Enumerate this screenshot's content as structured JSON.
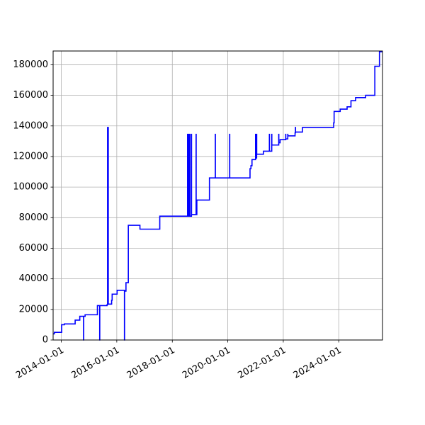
{
  "chart_data": {
    "type": "line",
    "title": "",
    "xlabel": "",
    "ylabel": "",
    "grid": true,
    "line_color": "#0000ff",
    "xlim": [
      "2013-09-15",
      "2025-07-30"
    ],
    "ylim": [
      0,
      189000
    ],
    "xticks": [
      "2014-01-01",
      "2016-01-01",
      "2018-01-01",
      "2020-01-01",
      "2022-01-01",
      "2024-01-01"
    ],
    "yticks": [
      0,
      20000,
      40000,
      60000,
      80000,
      100000,
      120000,
      140000,
      160000,
      180000
    ],
    "series": [
      {
        "name": "",
        "points": [
          [
            "2013-09-15",
            4000
          ],
          [
            "2013-10-01",
            5000
          ],
          [
            "2013-12-20",
            5000
          ],
          [
            "2014-01-05",
            10000
          ],
          [
            "2014-02-10",
            10500
          ],
          [
            "2014-07-01",
            10500
          ],
          [
            "2014-07-02",
            13000
          ],
          [
            "2014-08-30",
            13000
          ],
          [
            "2014-09-01",
            15500
          ],
          [
            "2014-10-20",
            15500
          ],
          [
            "2014-10-21",
            0
          ],
          [
            "2014-10-22",
            15500
          ],
          [
            "2014-11-10",
            16500
          ],
          [
            "2015-04-20",
            16500
          ],
          [
            "2015-04-21",
            22500
          ],
          [
            "2015-05-20",
            22500
          ],
          [
            "2015-05-21",
            0
          ],
          [
            "2015-05-22",
            22500
          ],
          [
            "2015-08-20",
            22500
          ],
          [
            "2015-08-25",
            23000
          ],
          [
            "2015-09-01",
            23500
          ],
          [
            "2015-09-02",
            139000
          ],
          [
            "2015-09-10",
            139000
          ],
          [
            "2015-09-11",
            23500
          ],
          [
            "2015-10-20",
            23500
          ],
          [
            "2015-10-25",
            26000
          ],
          [
            "2015-11-01",
            30000
          ],
          [
            "2015-12-25",
            30000
          ],
          [
            "2016-01-05",
            32500
          ],
          [
            "2016-04-10",
            32500
          ],
          [
            "2016-04-11",
            0
          ],
          [
            "2016-04-12",
            32000
          ],
          [
            "2016-04-25",
            32000
          ],
          [
            "2016-05-01",
            37500
          ],
          [
            "2016-05-20",
            37500
          ],
          [
            "2016-06-01",
            75000
          ],
          [
            "2016-10-20",
            75000
          ],
          [
            "2016-11-01",
            72500
          ],
          [
            "2017-07-15",
            72500
          ],
          [
            "2017-07-20",
            81000
          ],
          [
            "2018-07-20",
            81000
          ],
          [
            "2018-07-21",
            134500
          ],
          [
            "2018-07-22",
            81000
          ],
          [
            "2018-08-05",
            134500
          ],
          [
            "2018-08-06",
            81000
          ],
          [
            "2018-08-20",
            134500
          ],
          [
            "2018-08-21",
            81000
          ],
          [
            "2018-09-10",
            134500
          ],
          [
            "2018-09-11",
            82000
          ],
          [
            "2018-11-01",
            82000
          ],
          [
            "2018-11-10",
            134500
          ],
          [
            "2018-11-11",
            82000
          ],
          [
            "2018-11-20",
            91500
          ],
          [
            "2019-05-01",
            91500
          ],
          [
            "2019-05-05",
            106000
          ],
          [
            "2019-07-20",
            106000
          ],
          [
            "2019-07-21",
            134500
          ],
          [
            "2019-07-22",
            106000
          ],
          [
            "2020-01-25",
            106000
          ],
          [
            "2020-01-26",
            134500
          ],
          [
            "2020-01-27",
            106000
          ],
          [
            "2020-10-15",
            106000
          ],
          [
            "2020-10-20",
            112000
          ],
          [
            "2020-11-01",
            114000
          ],
          [
            "2020-11-15",
            118000
          ],
          [
            "2020-12-20",
            118000
          ],
          [
            "2021-01-01",
            134500
          ],
          [
            "2021-01-02",
            119000
          ],
          [
            "2021-01-15",
            134500
          ],
          [
            "2021-01-16",
            121500
          ],
          [
            "2021-04-10",
            121500
          ],
          [
            "2021-04-15",
            123500
          ],
          [
            "2021-07-01",
            123500
          ],
          [
            "2021-07-02",
            134500
          ],
          [
            "2021-07-03",
            123500
          ],
          [
            "2021-08-01",
            123500
          ],
          [
            "2021-08-02",
            134500
          ],
          [
            "2021-08-03",
            127500
          ],
          [
            "2021-11-01",
            127500
          ],
          [
            "2021-11-02",
            134500
          ],
          [
            "2021-11-03",
            129000
          ],
          [
            "2021-11-20",
            131000
          ],
          [
            "2022-02-01",
            131000
          ],
          [
            "2022-02-02",
            134500
          ],
          [
            "2022-02-03",
            131500
          ],
          [
            "2022-03-01",
            134500
          ],
          [
            "2022-03-02",
            133500
          ],
          [
            "2022-06-01",
            133500
          ],
          [
            "2022-06-05",
            135500
          ],
          [
            "2022-06-10",
            139000
          ],
          [
            "2022-06-11",
            136000
          ],
          [
            "2022-09-01",
            136000
          ],
          [
            "2022-09-10",
            139000
          ],
          [
            "2023-10-25",
            139000
          ],
          [
            "2023-10-26",
            142000
          ],
          [
            "2023-11-01",
            149500
          ],
          [
            "2024-01-10",
            149500
          ],
          [
            "2024-01-20",
            151000
          ],
          [
            "2024-04-15",
            151000
          ],
          [
            "2024-04-20",
            152500
          ],
          [
            "2024-06-01",
            152500
          ],
          [
            "2024-06-10",
            156500
          ],
          [
            "2024-08-01",
            156500
          ],
          [
            "2024-08-10",
            158500
          ],
          [
            "2024-12-10",
            158500
          ],
          [
            "2024-12-20",
            160000
          ],
          [
            "2025-04-10",
            160000
          ],
          [
            "2025-04-20",
            179000
          ],
          [
            "2025-06-10",
            179000
          ],
          [
            "2025-06-20",
            188500
          ],
          [
            "2025-07-30",
            188500
          ]
        ]
      }
    ]
  }
}
